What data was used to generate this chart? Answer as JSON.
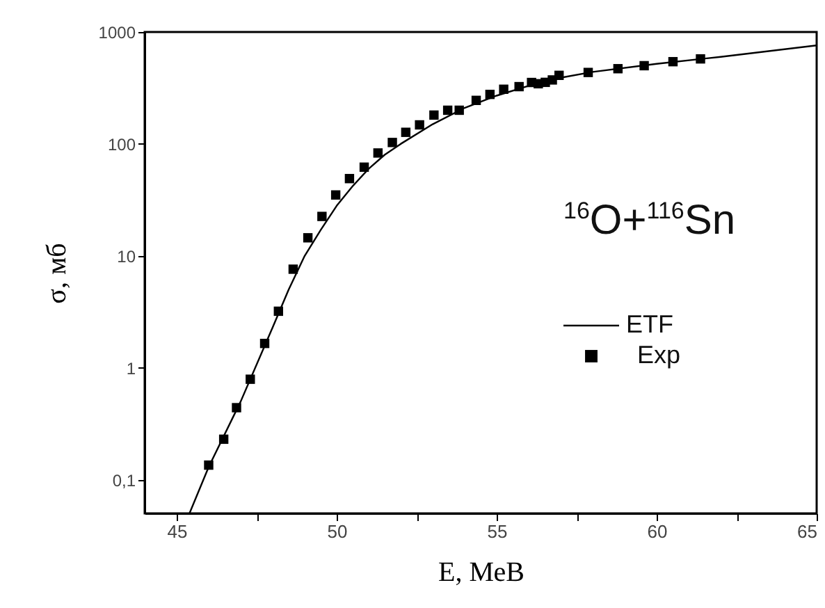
{
  "chart_data": {
    "type": "scatter",
    "xlabel": "Е, МеВ",
    "ylabel": "σ, мб",
    "annotations": [
      "$^{16}$O+$^{116}$Sn"
    ],
    "log": "y",
    "grid": false,
    "legend": "right",
    "xlim": [
      44,
      65
    ],
    "ylim": [
      0.05,
      1000
    ],
    "xticks": [
      45,
      {
        "value": 47.5,
        "label": null
      },
      50,
      {
        "value": 52.5,
        "label": null
      },
      55,
      {
        "value": 57.5,
        "label": null
      },
      60,
      {
        "value": 62.5,
        "label": null
      },
      65
    ],
    "yticks": [
      {
        "value": 0.1,
        "label": "0,1"
      },
      1,
      10,
      100,
      1000
    ],
    "series": [
      {
        "name": "ETF",
        "type": "line",
        "color": "#000000",
        "line_style": "solid",
        "x": [
          45.4,
          46,
          47,
          48,
          48.5,
          49,
          49.5,
          50,
          50.5,
          51,
          51.5,
          52,
          53,
          54,
          55,
          56,
          57,
          58,
          60,
          62,
          65
        ],
        "values": [
          0.05,
          0.13,
          0.5,
          2.3,
          5,
          10,
          17,
          28,
          42,
          60,
          80,
          100,
          150,
          210,
          270,
          330,
          390,
          440,
          520,
          600,
          760
        ]
      },
      {
        "name": "Exp",
        "color": "#000000",
        "marker": "square",
        "x": [
          46.0,
          46.47,
          46.87,
          47.3,
          47.75,
          48.18,
          48.64,
          49.1,
          49.54,
          49.97,
          50.4,
          50.86,
          51.29,
          51.74,
          52.16,
          52.59,
          53.04,
          53.47,
          53.83,
          54.36,
          54.79,
          55.22,
          55.7,
          56.09,
          56.3,
          56.52,
          56.74,
          56.95,
          57.86,
          58.79,
          59.61,
          60.51,
          61.37
        ],
        "values": [
          0.135,
          0.23,
          0.44,
          0.79,
          1.65,
          3.2,
          7.6,
          14.5,
          22.5,
          35,
          49,
          62,
          83,
          103,
          127,
          148,
          181,
          200,
          200,
          245,
          277,
          308,
          325,
          354,
          345,
          355,
          373,
          410,
          435,
          470,
          500,
          543,
          575
        ]
      }
    ]
  }
}
